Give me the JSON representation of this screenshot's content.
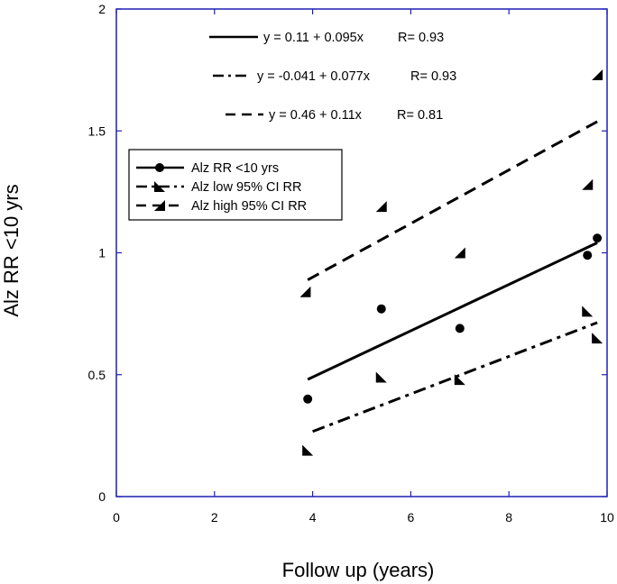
{
  "chart_data": {
    "type": "scatter",
    "title": "",
    "xlabel": "Follow up (years)",
    "ylabel": "Alz RR <10 yrs",
    "xlim": [
      0,
      10
    ],
    "ylim": [
      0,
      2
    ],
    "xticks": [
      0,
      2,
      4,
      6,
      8,
      10
    ],
    "yticks": [
      0,
      0.5,
      1,
      1.5,
      2
    ],
    "xtick_labels": [
      "0",
      "2",
      "4",
      "6",
      "8",
      "10"
    ],
    "ytick_labels": [
      "0",
      "0.5",
      "1",
      "1.5",
      "2"
    ],
    "grid": false,
    "axis_color": "#1f1fb4",
    "series": [
      {
        "name": "Alz RR <10 yrs",
        "marker": "circle",
        "line_style": "solid",
        "points": [
          {
            "x": 3.9,
            "y": 0.4
          },
          {
            "x": 5.4,
            "y": 0.77
          },
          {
            "x": 7.0,
            "y": 0.69
          },
          {
            "x": 9.6,
            "y": 0.99
          },
          {
            "x": 9.8,
            "y": 1.06
          }
        ],
        "fit": {
          "intercept": 0.11,
          "slope": 0.095,
          "x_range": [
            3.9,
            9.8
          ]
        },
        "equation": "y = 0.11 + 0.095x",
        "r_label": "R= 0.93"
      },
      {
        "name": "Alz low 95% CI RR",
        "marker": "triangle-down-right",
        "line_style": "dashdot",
        "points": [
          {
            "x": 3.9,
            "y": 0.19
          },
          {
            "x": 5.4,
            "y": 0.49
          },
          {
            "x": 7.0,
            "y": 0.48
          },
          {
            "x": 9.6,
            "y": 0.76
          },
          {
            "x": 9.8,
            "y": 0.65
          }
        ],
        "fit": {
          "intercept": -0.041,
          "slope": 0.077,
          "x_range": [
            4.0,
            9.8
          ]
        },
        "equation": "y = -0.041 + 0.077x",
        "r_label": "R= 0.93"
      },
      {
        "name": "Alz high 95% CI RR",
        "marker": "triangle-up-left",
        "line_style": "dashed",
        "points": [
          {
            "x": 3.85,
            "y": 0.84
          },
          {
            "x": 5.4,
            "y": 1.19
          },
          {
            "x": 7.0,
            "y": 1.0
          },
          {
            "x": 9.6,
            "y": 1.28
          },
          {
            "x": 9.8,
            "y": 1.73
          }
        ],
        "fit": {
          "intercept": 0.46,
          "slope": 0.11,
          "x_range": [
            3.9,
            9.8
          ]
        },
        "equation": "y = 0.46 + 0.11x",
        "r_label": "R= 0.81"
      }
    ],
    "equations_placement": "top-center",
    "legend_placement": "upper-left"
  }
}
